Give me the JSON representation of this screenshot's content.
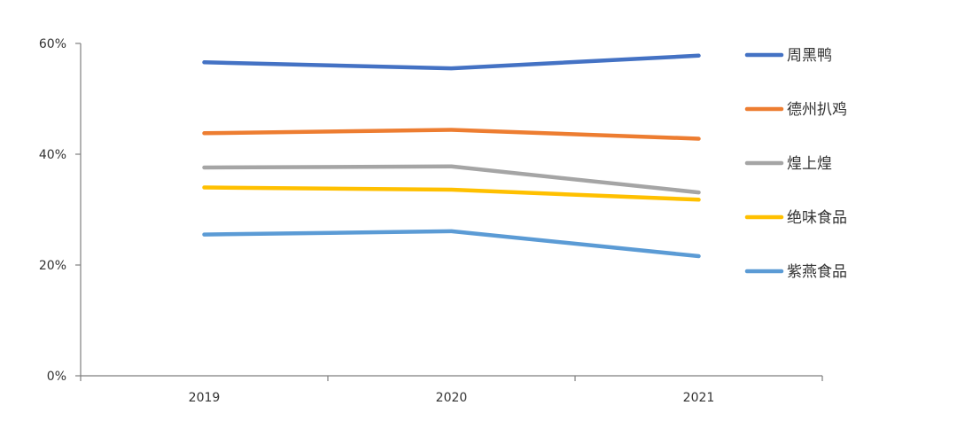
{
  "chart_data": {
    "type": "line",
    "title": "",
    "xlabel": "",
    "ylabel": "",
    "categories": [
      "2019",
      "2020",
      "2021"
    ],
    "ylim": [
      0,
      60
    ],
    "yticks": [
      0,
      20,
      40,
      60
    ],
    "ytick_labels": [
      "0%",
      "20%",
      "40%",
      "60%"
    ],
    "grid": false,
    "legend_position": "right",
    "series": [
      {
        "name": "周黑鸭",
        "color": "#4472C4",
        "values": [
          56.6,
          55.5,
          57.8
        ]
      },
      {
        "name": "德州扒鸡",
        "color": "#ED7D31",
        "values": [
          43.8,
          44.4,
          42.8
        ]
      },
      {
        "name": "煌上煌",
        "color": "#A5A5A5",
        "values": [
          37.6,
          37.8,
          33.1
        ]
      },
      {
        "name": "绝味食品",
        "color": "#FFC000",
        "values": [
          34.0,
          33.6,
          31.8
        ]
      },
      {
        "name": "紫燕食品",
        "color": "#5B9BD5",
        "values": [
          25.5,
          26.1,
          21.6
        ]
      }
    ]
  }
}
